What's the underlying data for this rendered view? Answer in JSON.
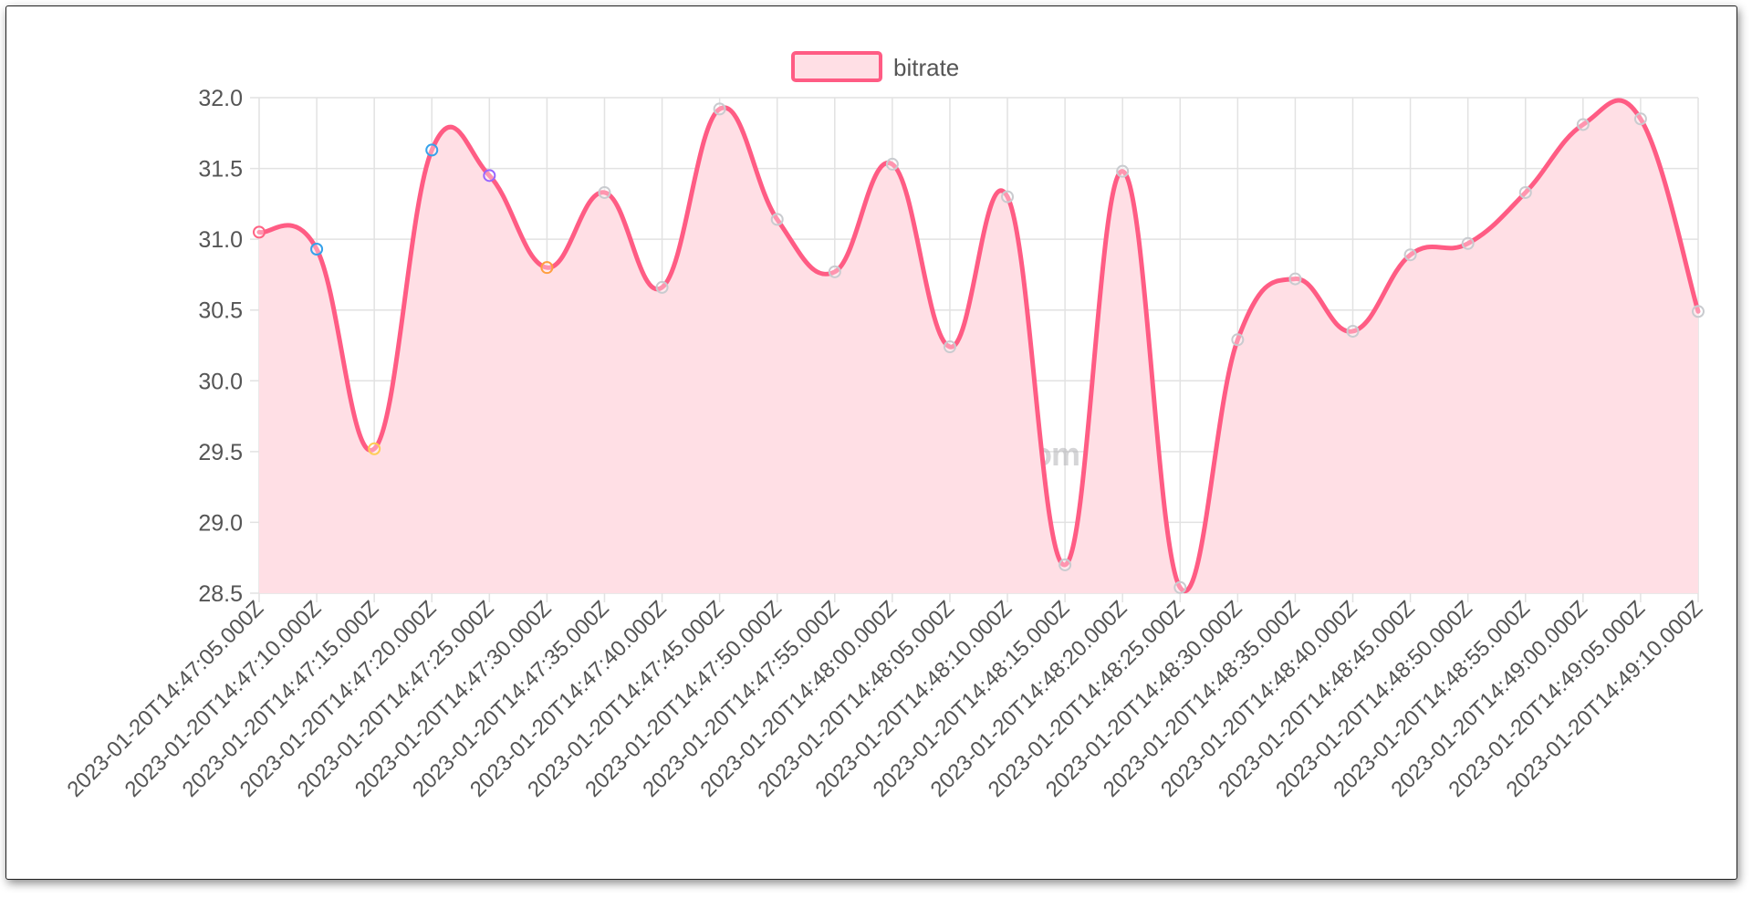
{
  "chart_data": {
    "type": "area",
    "title": "",
    "xlabel": "",
    "ylabel": "",
    "ylim": [
      28.5,
      32.0
    ],
    "y_ticks": [
      "32.0",
      "31.5",
      "31.0",
      "30.5",
      "30.0",
      "29.5",
      "29.0",
      "28.5"
    ],
    "grid": true,
    "legend_position": "top",
    "categories": [
      "2023-01-20T14:47:05.000Z",
      "2023-01-20T14:47:10.000Z",
      "2023-01-20T14:47:15.000Z",
      "2023-01-20T14:47:20.000Z",
      "2023-01-20T14:47:25.000Z",
      "2023-01-20T14:47:30.000Z",
      "2023-01-20T14:47:35.000Z",
      "2023-01-20T14:47:40.000Z",
      "2023-01-20T14:47:45.000Z",
      "2023-01-20T14:47:50.000Z",
      "2023-01-20T14:47:55.000Z",
      "2023-01-20T14:48:00.000Z",
      "2023-01-20T14:48:05.000Z",
      "2023-01-20T14:48:10.000Z",
      "2023-01-20T14:48:15.000Z",
      "2023-01-20T14:48:20.000Z",
      "2023-01-20T14:48:25.000Z",
      "2023-01-20T14:48:30.000Z",
      "2023-01-20T14:48:35.000Z",
      "2023-01-20T14:48:40.000Z",
      "2023-01-20T14:48:45.000Z",
      "2023-01-20T14:48:50.000Z",
      "2023-01-20T14:48:55.000Z",
      "2023-01-20T14:49:00.000Z",
      "2023-01-20T14:49:05.000Z",
      "2023-01-20T14:49:10.000Z"
    ],
    "series": [
      {
        "name": "bitrate",
        "color": "#ff5c84",
        "fill": "#ffdfe5",
        "values": [
          31.05,
          30.93,
          29.52,
          31.63,
          31.45,
          30.8,
          31.33,
          30.66,
          31.92,
          31.14,
          30.77,
          31.53,
          30.24,
          31.3,
          28.7,
          31.48,
          28.54,
          30.29,
          30.72,
          30.35,
          30.89,
          30.97,
          31.33,
          31.81,
          31.85,
          30.49
        ]
      }
    ],
    "point_colors": [
      "#ff6384",
      "#36a2eb",
      "#ffcd56",
      "#36a2eb",
      "#9966ff",
      "#ff9f40",
      "#c9cbcf",
      "#c9cbcf",
      "#c9cbcf",
      "#c9cbcf",
      "#c9cbcf",
      "#c9cbcf",
      "#c9cbcf",
      "#c9cbcf",
      "#c9cbcf",
      "#c9cbcf",
      "#c9cbcf",
      "#c9cbcf",
      "#c9cbcf",
      "#c9cbcf",
      "#c9cbcf",
      "#c9cbcf",
      "#c9cbcf",
      "#c9cbcf",
      "#c9cbcf",
      "#c9cbcf"
    ],
    "watermark": "{JSON}toChart.com"
  }
}
